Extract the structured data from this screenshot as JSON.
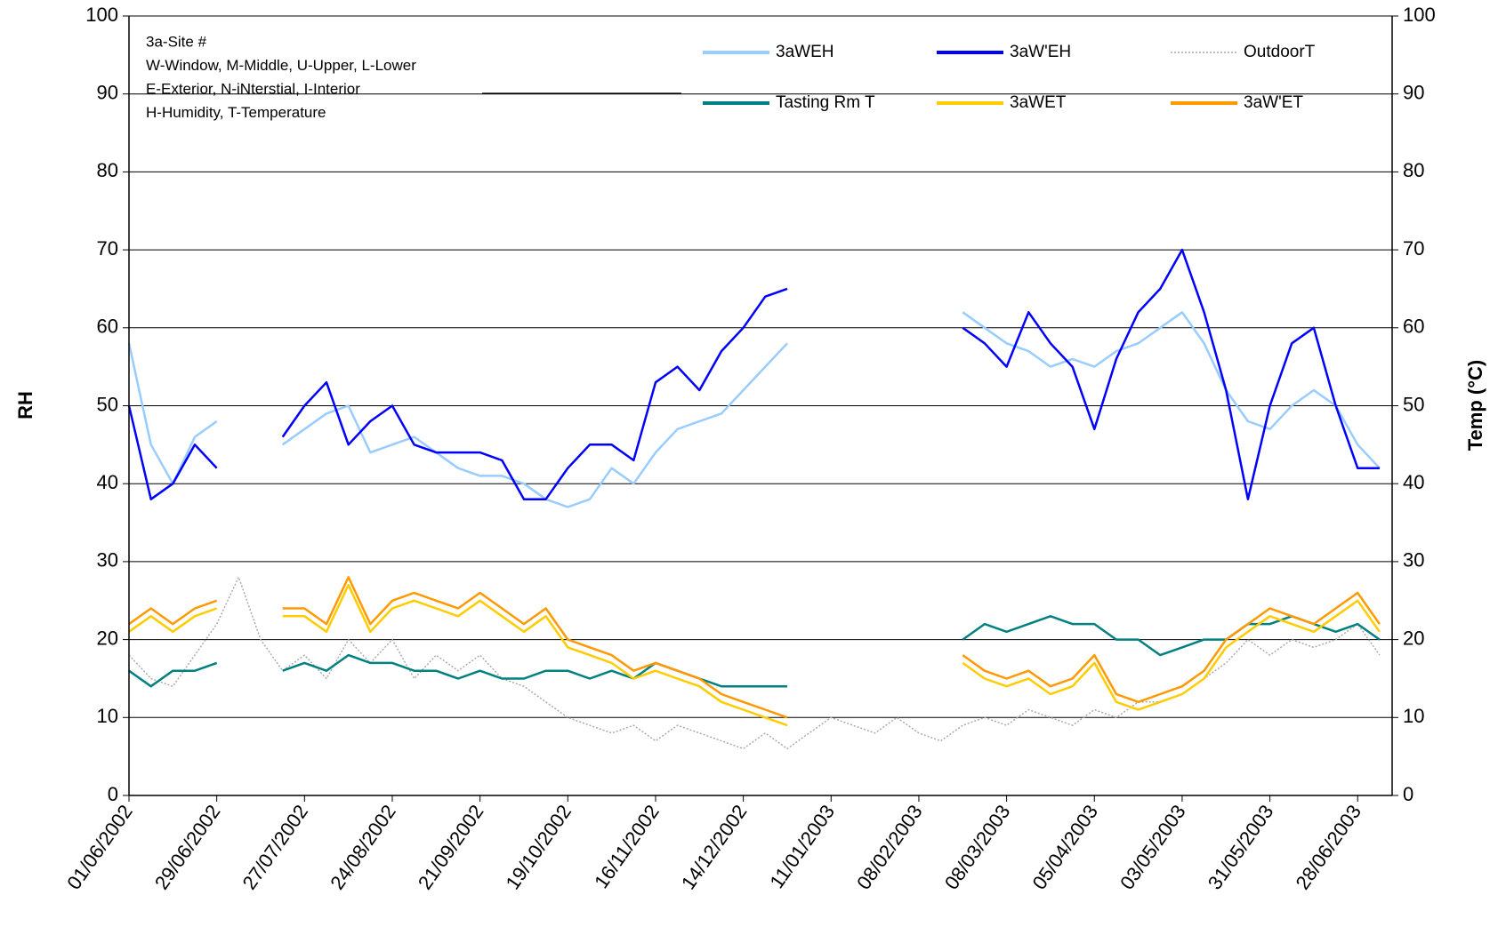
{
  "chart_data": {
    "type": "line",
    "notes": [
      "3a-Site #",
      "W-Window, M-Middle, U-Upper, L-Lower",
      "E-Exterior, N-iNterstial, I-Interior",
      "H-Humidity, T-Temperature"
    ],
    "y_label": "RH",
    "y2_label": "Temp (°C)",
    "x": [
      "01/06/2002",
      "08/06/2002",
      "15/06/2002",
      "22/06/2002",
      "29/06/2002",
      "06/07/2002",
      "13/07/2002",
      "20/07/2002",
      "27/07/2002",
      "03/08/2002",
      "10/08/2002",
      "17/08/2002",
      "24/08/2002",
      "31/08/2002",
      "07/09/2002",
      "14/09/2002",
      "21/09/2002",
      "28/09/2002",
      "05/10/2002",
      "12/10/2002",
      "19/10/2002",
      "26/10/2002",
      "02/11/2002",
      "09/11/2002",
      "16/11/2002",
      "23/11/2002",
      "30/11/2002",
      "07/12/2002",
      "14/12/2002",
      "21/12/2002",
      "28/12/2002",
      "04/01/2003",
      "11/01/2003",
      "18/01/2003",
      "25/01/2003",
      "01/02/2003",
      "08/02/2003",
      "15/02/2003",
      "22/02/2003",
      "01/03/2003",
      "08/03/2003",
      "15/03/2003",
      "22/03/2003",
      "29/03/2003",
      "05/04/2003",
      "12/04/2003",
      "19/04/2003",
      "26/04/2003",
      "03/05/2003",
      "10/05/2003",
      "17/05/2003",
      "24/05/2003",
      "31/05/2003",
      "07/06/2003",
      "14/06/2003",
      "21/06/2003",
      "28/06/2003",
      "05/07/2003"
    ],
    "xlim": [
      "01/06/2002",
      "09/07/2003"
    ],
    "xticks": [
      "01/06/2002",
      "29/06/2002",
      "27/07/2002",
      "24/08/2002",
      "21/09/2002",
      "19/10/2002",
      "16/11/2002",
      "14/12/2002",
      "11/01/2003",
      "08/02/2003",
      "08/03/2003",
      "05/04/2003",
      "03/05/2003",
      "31/05/2003",
      "28/06/2003"
    ],
    "ylim": [
      0,
      100
    ],
    "yticks": [
      0,
      10,
      20,
      30,
      40,
      50,
      60,
      70,
      80,
      90,
      100
    ],
    "y2lim": [
      0,
      100
    ],
    "y2ticks": [
      0,
      10,
      20,
      30,
      40,
      50,
      60,
      70,
      80,
      90,
      100
    ],
    "grid": true,
    "series": [
      {
        "name": "3aWEH",
        "color": "#99ccff",
        "values": [
          58,
          45,
          40,
          46,
          48,
          null,
          null,
          45,
          47,
          49,
          50,
          44,
          45,
          46,
          44,
          42,
          41,
          41,
          40,
          38,
          37,
          38,
          42,
          40,
          44,
          47,
          48,
          49,
          52,
          55,
          58,
          null,
          null,
          null,
          null,
          null,
          null,
          null,
          62,
          60,
          58,
          57,
          55,
          56,
          55,
          57,
          58,
          60,
          62,
          58,
          52,
          48,
          47,
          50,
          52,
          50,
          45,
          42
        ]
      },
      {
        "name": "3aW'EH",
        "color": "#0000ff",
        "values": [
          50,
          38,
          40,
          45,
          42,
          null,
          null,
          46,
          50,
          53,
          45,
          48,
          50,
          45,
          44,
          44,
          44,
          43,
          38,
          38,
          42,
          45,
          45,
          43,
          53,
          55,
          52,
          57,
          60,
          64,
          65,
          null,
          null,
          null,
          null,
          null,
          null,
          null,
          60,
          58,
          55,
          62,
          58,
          55,
          47,
          56,
          62,
          65,
          70,
          62,
          52,
          38,
          50,
          58,
          60,
          50,
          42,
          42
        ]
      },
      {
        "name": "OutdoorT",
        "color": "#aaaaaa",
        "dashed": true,
        "axis": "y2",
        "values": [
          18,
          15,
          14,
          18,
          22,
          28,
          20,
          16,
          18,
          15,
          20,
          17,
          20,
          15,
          18,
          16,
          18,
          15,
          14,
          12,
          10,
          9,
          8,
          9,
          7,
          9,
          8,
          7,
          6,
          8,
          6,
          8,
          10,
          9,
          8,
          10,
          8,
          7,
          9,
          10,
          9,
          11,
          10,
          9,
          11,
          10,
          12,
          12,
          13,
          15,
          17,
          20,
          18,
          20,
          19,
          20,
          22,
          18
        ]
      },
      {
        "name": "Tasting Rm T",
        "color": "#008080",
        "axis": "y2",
        "values": [
          16,
          14,
          16,
          16,
          17,
          null,
          null,
          16,
          17,
          16,
          18,
          17,
          17,
          16,
          16,
          15,
          16,
          15,
          15,
          16,
          16,
          15,
          16,
          15,
          17,
          16,
          15,
          14,
          14,
          14,
          14,
          null,
          null,
          null,
          null,
          null,
          null,
          null,
          20,
          22,
          21,
          22,
          23,
          22,
          22,
          20,
          20,
          18,
          19,
          20,
          20,
          22,
          22,
          23,
          22,
          21,
          22,
          20
        ]
      },
      {
        "name": "3aWET",
        "color": "#ffcc00",
        "axis": "y2",
        "values": [
          21,
          23,
          21,
          23,
          24,
          null,
          null,
          23,
          23,
          21,
          27,
          21,
          24,
          25,
          24,
          23,
          25,
          23,
          21,
          23,
          19,
          18,
          17,
          15,
          16,
          15,
          14,
          12,
          11,
          10,
          9,
          null,
          null,
          null,
          null,
          null,
          null,
          null,
          17,
          15,
          14,
          15,
          13,
          14,
          17,
          12,
          11,
          12,
          13,
          15,
          19,
          21,
          23,
          22,
          21,
          23,
          25,
          21
        ]
      },
      {
        "name": "3aW'ET",
        "color": "#ff9900",
        "axis": "y2",
        "values": [
          22,
          24,
          22,
          24,
          25,
          null,
          null,
          24,
          24,
          22,
          28,
          22,
          25,
          26,
          25,
          24,
          26,
          24,
          22,
          24,
          20,
          19,
          18,
          16,
          17,
          16,
          15,
          13,
          12,
          11,
          10,
          null,
          null,
          null,
          null,
          null,
          null,
          null,
          18,
          16,
          15,
          16,
          14,
          15,
          18,
          13,
          12,
          13,
          14,
          16,
          20,
          22,
          24,
          23,
          22,
          24,
          26,
          22
        ]
      }
    ]
  }
}
